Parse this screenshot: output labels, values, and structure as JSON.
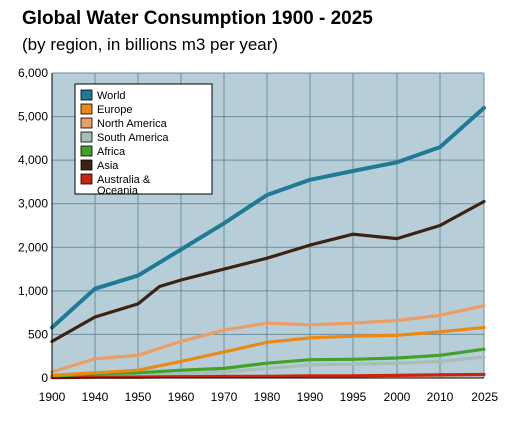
{
  "chart_data": {
    "type": "line",
    "title": "Global Water Consumption 1900 - 2025",
    "subtitle": "(by region, in billions m3 per year)",
    "xlabel": "",
    "ylabel": "",
    "x": [
      1900,
      1940,
      1950,
      1960,
      1970,
      1980,
      1990,
      1995,
      2000,
      2010,
      2025
    ],
    "y_ticks": [
      0,
      500,
      1000,
      2000,
      3000,
      4000,
      5000,
      6000
    ],
    "y_tick_labels": [
      "0",
      "500",
      "1,000",
      "2,000",
      "3,000",
      "4,000",
      "5,000",
      "6,000"
    ],
    "ylim": [
      0,
      6000
    ],
    "grid": true,
    "legend_position": "top-left",
    "series": [
      {
        "name": "World",
        "color": "#1f7a96",
        "points": [
          [
            1900,
            580
          ],
          [
            1940,
            1050
          ],
          [
            1950,
            1350
          ],
          [
            1960,
            1950
          ],
          [
            1970,
            2550
          ],
          [
            1980,
            3200
          ],
          [
            1990,
            3550
          ],
          [
            1995,
            3750
          ],
          [
            2000,
            3950
          ],
          [
            2010,
            4300
          ],
          [
            2025,
            5200
          ]
        ]
      },
      {
        "name": "Europe",
        "color": "#e98a16",
        "points": [
          [
            1900,
            30
          ],
          [
            1940,
            60
          ],
          [
            1950,
            90
          ],
          [
            1960,
            190
          ],
          [
            1970,
            300
          ],
          [
            1980,
            410
          ],
          [
            1990,
            460
          ],
          [
            1995,
            480
          ],
          [
            2000,
            490
          ],
          [
            2010,
            530
          ],
          [
            2025,
            580
          ]
        ]
      },
      {
        "name": "North America",
        "color": "#eb9d66",
        "points": [
          [
            1900,
            70
          ],
          [
            1940,
            220
          ],
          [
            1950,
            260
          ],
          [
            1960,
            420
          ],
          [
            1970,
            550
          ],
          [
            1980,
            630
          ],
          [
            1990,
            610
          ],
          [
            1995,
            630
          ],
          [
            2000,
            660
          ],
          [
            2010,
            720
          ],
          [
            2025,
            830
          ]
        ]
      },
      {
        "name": "South America",
        "color": "#a5bfb8",
        "points": [
          [
            1900,
            10
          ],
          [
            1940,
            20
          ],
          [
            1950,
            30
          ],
          [
            1960,
            50
          ],
          [
            1970,
            70
          ],
          [
            1980,
            110
          ],
          [
            1990,
            150
          ],
          [
            1995,
            160
          ],
          [
            2000,
            170
          ],
          [
            2010,
            190
          ],
          [
            2025,
            240
          ]
        ]
      },
      {
        "name": "Africa",
        "color": "#43a12a",
        "points": [
          [
            1900,
            20
          ],
          [
            1940,
            50
          ],
          [
            1950,
            60
          ],
          [
            1960,
            90
          ],
          [
            1970,
            110
          ],
          [
            1980,
            170
          ],
          [
            1990,
            210
          ],
          [
            1995,
            215
          ],
          [
            2000,
            230
          ],
          [
            2010,
            260
          ],
          [
            2025,
            330
          ]
        ]
      },
      {
        "name": "Asia",
        "color": "#3b2214",
        "points": [
          [
            1900,
            420
          ],
          [
            1940,
            700
          ],
          [
            1950,
            850
          ],
          [
            1955,
            1100
          ],
          [
            1960,
            1250
          ],
          [
            1970,
            1500
          ],
          [
            1980,
            1750
          ],
          [
            1990,
            2050
          ],
          [
            1995,
            2300
          ],
          [
            2000,
            2200
          ],
          [
            2010,
            2500
          ],
          [
            2025,
            3050
          ]
        ]
      },
      {
        "name": "Australia & Oceania",
        "label_lines": [
          "Australia &",
          "Oceania"
        ],
        "color": "#c8240e",
        "points": [
          [
            1900,
            5
          ],
          [
            1940,
            10
          ],
          [
            1950,
            10
          ],
          [
            1960,
            15
          ],
          [
            1970,
            20
          ],
          [
            1980,
            20
          ],
          [
            1990,
            25
          ],
          [
            1995,
            25
          ],
          [
            2000,
            30
          ],
          [
            2010,
            35
          ],
          [
            2025,
            40
          ]
        ]
      }
    ]
  }
}
